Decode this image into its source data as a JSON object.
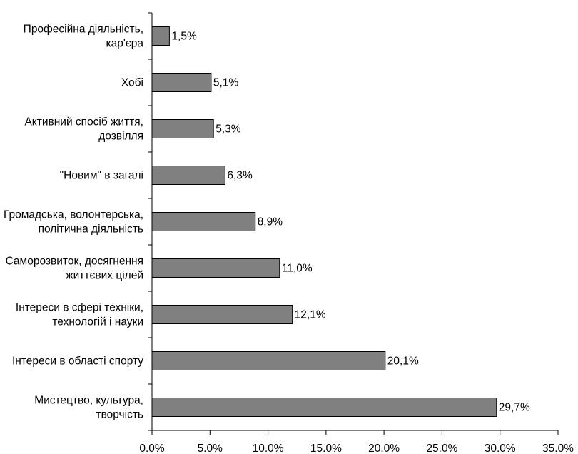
{
  "chart_data": {
    "type": "bar",
    "orientation": "horizontal",
    "categories": [
      [
        "Професійна діяльність,",
        "кар'єра"
      ],
      [
        "Хобі"
      ],
      [
        "Активний спосіб життя,",
        "дозвілля"
      ],
      [
        "\"Новим\" в загалі"
      ],
      [
        "Громадська, волонтерська,",
        "політична діяльність"
      ],
      [
        "Саморозвиток, досягнення",
        "життєвих цілей"
      ],
      [
        "Інтереси в сфері техніки,",
        "технологій і науки"
      ],
      [
        "Інтереси в області спорту"
      ],
      [
        "Мистецтво, культура,",
        "творчість"
      ]
    ],
    "values": [
      1.5,
      5.1,
      5.3,
      6.3,
      8.9,
      11.0,
      12.1,
      20.1,
      29.7
    ],
    "value_labels": [
      "1,5%",
      "5,1%",
      "5,3%",
      "6,3%",
      "8,9%",
      "11,0%",
      "12,1%",
      "20,1%",
      "29,7%"
    ],
    "xlim": [
      0,
      35
    ],
    "xticks": [
      0,
      5,
      10,
      15,
      20,
      25,
      30,
      35
    ],
    "xtick_labels": [
      "0.0%",
      "5.0%",
      "10.0%",
      "15.0%",
      "20.0%",
      "25.0%",
      "30.0%",
      "35.0%"
    ],
    "grid": false,
    "legend": "none",
    "bar_color": "#808080",
    "title": "",
    "xlabel": "",
    "ylabel": ""
  }
}
